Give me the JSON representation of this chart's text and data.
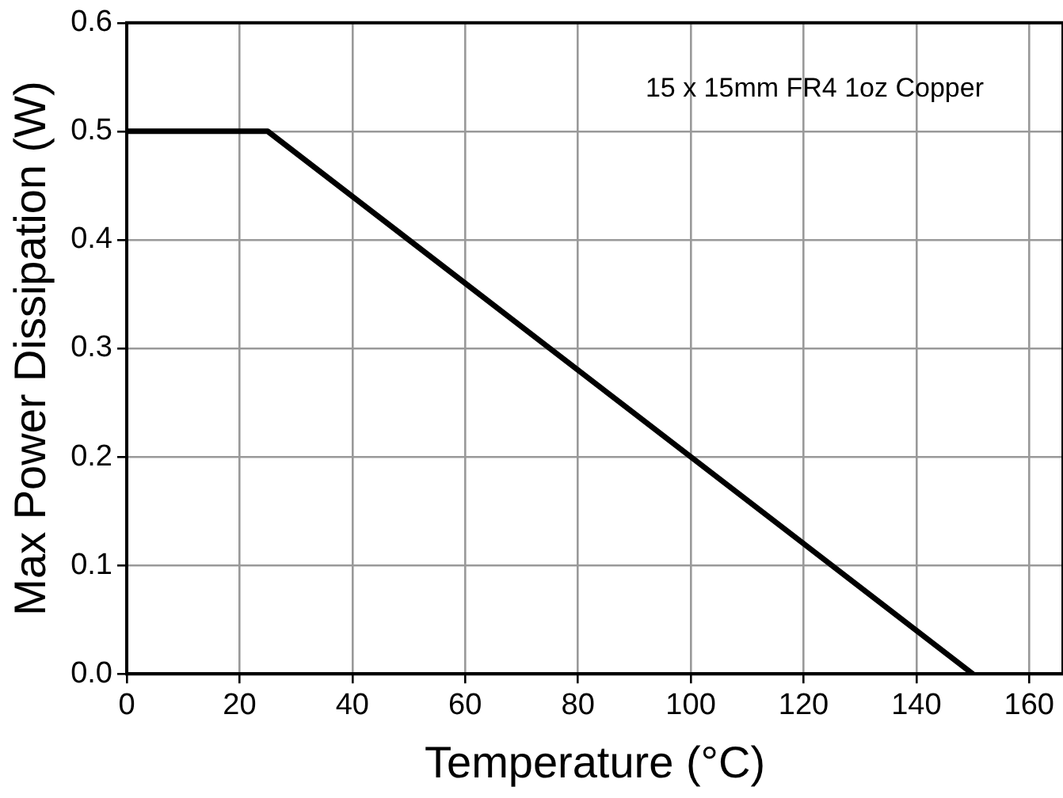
{
  "chart_data": {
    "type": "line",
    "xlabel": "Temperature (°C)",
    "ylabel": "Max Power Dissipation (W)",
    "x": [
      0,
      25,
      150
    ],
    "series": [
      {
        "color": "#000000",
        "values": [
          0.5,
          0.5,
          0
        ]
      }
    ],
    "xlim": [
      0,
      166
    ],
    "xticks": [
      0,
      20,
      40,
      60,
      80,
      100,
      120,
      140,
      160
    ],
    "ylim": [
      0,
      0.6
    ],
    "yticks": [
      {
        "value": 0,
        "label": "0.0"
      },
      0.1,
      0.2,
      0.3,
      0.4,
      0.5,
      0.6
    ],
    "grid": true,
    "legend": false,
    "marker": "none",
    "line_style": "solid",
    "annotations": [
      "15 x 15mm FR4 1oz Copper"
    ]
  }
}
